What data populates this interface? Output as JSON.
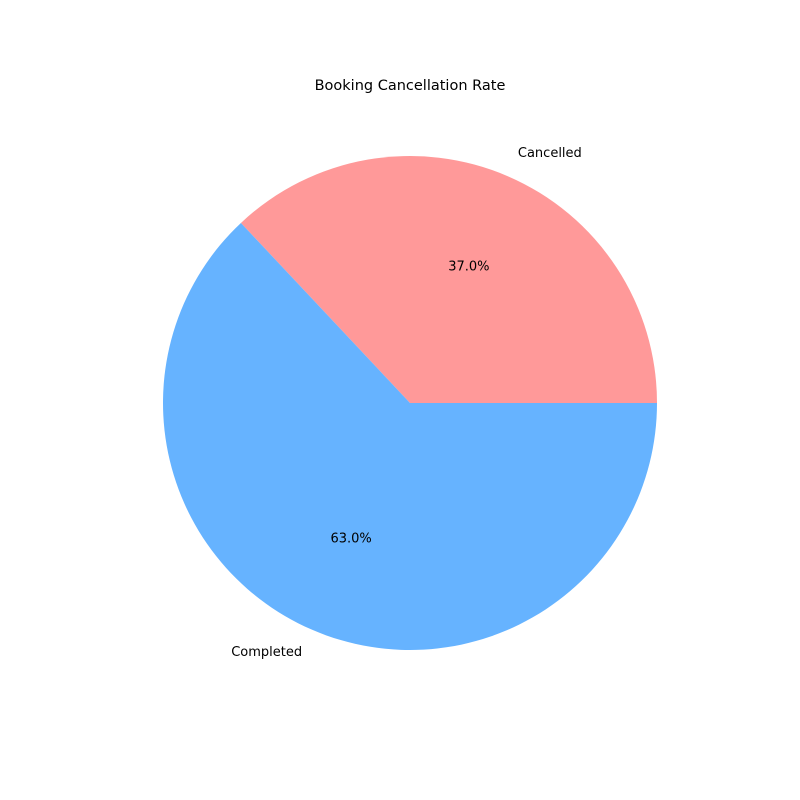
{
  "chart_data": {
    "type": "pie",
    "title": "Booking Cancellation Rate",
    "start_angle_deg": 0,
    "direction": "counterclockwise",
    "legend": "none",
    "slices": [
      {
        "label": "Cancelled",
        "value": 37.0,
        "pct_label": "37.0%",
        "color": "#ff9999"
      },
      {
        "label": "Completed",
        "value": 63.0,
        "pct_label": "63.0%",
        "color": "#66b3ff"
      }
    ]
  }
}
